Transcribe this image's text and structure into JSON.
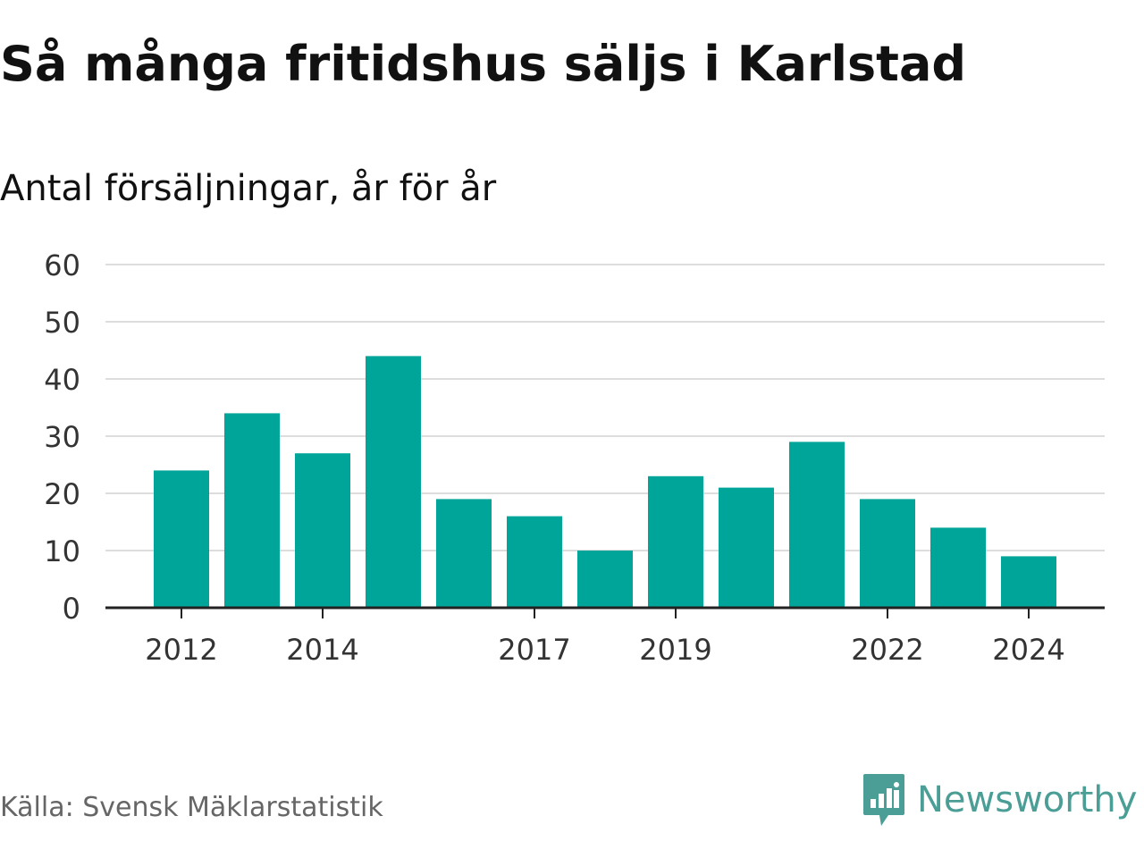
{
  "title": "Så många fritidshus säljs i Karlstad",
  "subtitle": "Antal försäljningar, år för år",
  "source": "Källa: Svensk Mäklarstatistik",
  "brand": {
    "name": "Newsworthy",
    "icon": "newsworthy-logo-icon"
  },
  "colors": {
    "bar": "#00a59a",
    "grid": "#dddddd",
    "axis": "#222222",
    "tick_text": "#333333",
    "brand": "#4a9e95"
  },
  "chart_data": {
    "type": "bar",
    "categories": [
      "2012",
      "2013",
      "2014",
      "2015",
      "2016",
      "2017",
      "2018",
      "2019",
      "2020",
      "2021",
      "2022",
      "2023",
      "2024"
    ],
    "values": [
      24,
      34,
      27,
      44,
      19,
      16,
      10,
      23,
      21,
      29,
      19,
      14,
      9
    ],
    "x_tick_labels": [
      "2012",
      "2014",
      "2017",
      "2019",
      "2022",
      "2024"
    ],
    "y_ticks": [
      0,
      10,
      20,
      30,
      40,
      50,
      60
    ],
    "ylim": [
      0,
      60
    ],
    "grid": true,
    "legend": "none",
    "xlabel": "",
    "ylabel": ""
  }
}
